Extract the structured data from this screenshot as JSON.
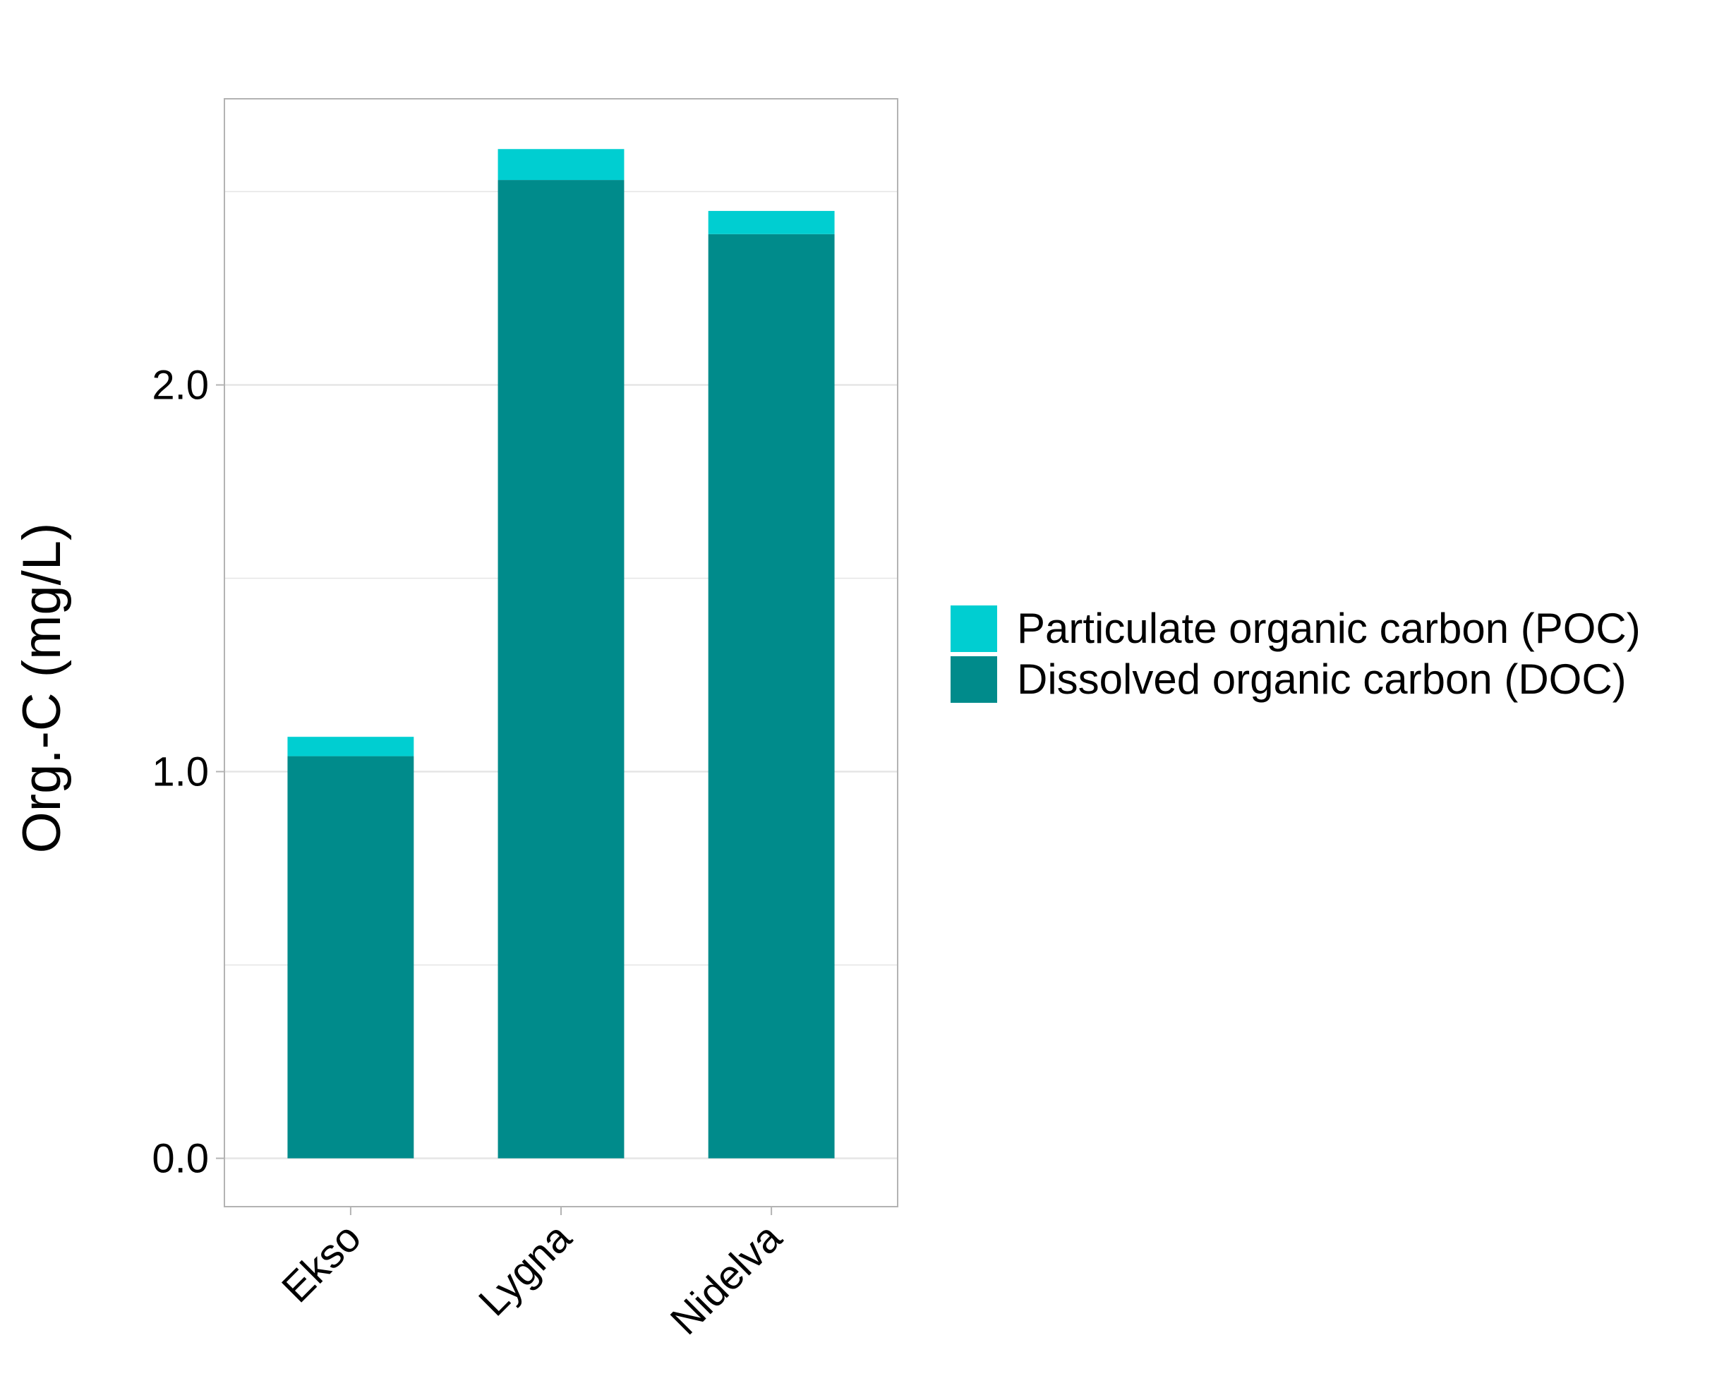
{
  "colors": {
    "poc": "#00CED1",
    "doc": "#008B8B",
    "gridline": "#E5E5E5",
    "panel_border": "#B3B3B3",
    "tick": "#B3B3B3",
    "background": "#FFFFFF"
  },
  "chart_data": {
    "type": "bar",
    "stacked": true,
    "categories": [
      "Ekso",
      "Lygna",
      "Nidelva"
    ],
    "series": [
      {
        "name": "Dissolved organic carbon (DOC)",
        "color_key": "doc",
        "values": [
          1.04,
          2.53,
          2.39
        ]
      },
      {
        "name": "Particulate organic carbon (POC)",
        "color_key": "poc",
        "values": [
          0.05,
          0.08,
          0.06
        ]
      }
    ],
    "title": "",
    "xlabel": "",
    "ylabel": "Org.-C (mg/L)",
    "ylim": [
      -0.125,
      2.74
    ],
    "yticks": [
      0.0,
      1.0,
      2.0
    ],
    "ytick_labels": [
      "0.0",
      "1.0",
      "2.0"
    ],
    "minor_gridlines": [
      0.5,
      1.5,
      2.5
    ],
    "grid": true,
    "legend": {
      "placement": "right",
      "entries": [
        {
          "label": "Particulate organic carbon (POC)",
          "color_key": "poc"
        },
        {
          "label": "Dissolved organic carbon (DOC)",
          "color_key": "doc"
        }
      ]
    }
  }
}
